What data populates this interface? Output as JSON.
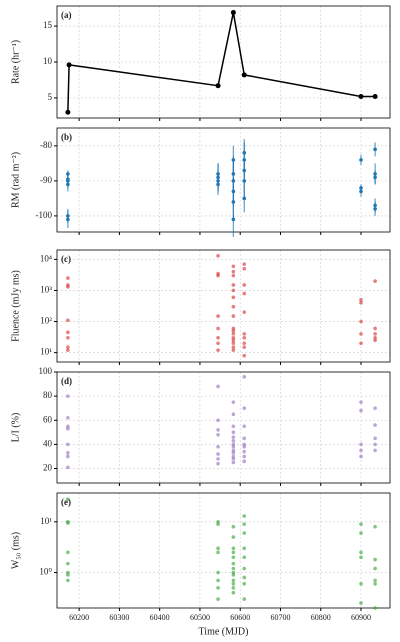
{
  "chart_data": [
    {
      "type": "line",
      "panel_label": "(a)",
      "ylabel": "Rate (hr⁻¹)",
      "color": "#000000",
      "x": [
        60172,
        60175,
        60545,
        60583,
        60610,
        60900,
        60935
      ],
      "values": [
        3,
        9.6,
        6.7,
        16.9,
        8.2,
        5.2,
        5.2
      ],
      "xlim": [
        60145,
        60972
      ],
      "ylim": [
        2.2,
        17.8
      ],
      "yticks": [
        5,
        10,
        15
      ],
      "grid": true
    },
    {
      "type": "errorbar",
      "panel_label": "(b)",
      "ylabel": "RM (rad m⁻²)",
      "color": "#1f77b4",
      "x": [
        60172,
        60172,
        60172,
        60172,
        60172,
        60172,
        60545,
        60545,
        60545,
        60545,
        60583,
        60583,
        60583,
        60583,
        60583,
        60583,
        60610,
        60610,
        60610,
        60610,
        60610,
        60900,
        60900,
        60900,
        60935,
        60935,
        60935,
        60935,
        60935
      ],
      "values": [
        -90,
        -91,
        -89.5,
        -100,
        -101,
        -88,
        -88,
        -89,
        -90,
        -91,
        -84,
        -88,
        -90,
        -93,
        -96,
        -101,
        -84,
        -87,
        -90,
        -95,
        -82,
        -84,
        -92,
        -93,
        -81,
        -88,
        -89,
        -97,
        -98
      ],
      "errors": [
        2,
        2,
        1.5,
        2,
        2.5,
        1,
        3,
        4,
        2,
        3,
        4,
        5,
        6,
        4,
        5,
        5,
        5,
        4,
        5,
        4,
        4,
        1.5,
        1,
        1.5,
        2,
        3,
        2,
        2,
        2
      ],
      "xlim": [
        60145,
        60972
      ],
      "ylim": [
        -104.6,
        -74.9
      ],
      "yticks": [
        -100,
        -90,
        -80
      ],
      "grid": true
    },
    {
      "type": "scatter",
      "panel_label": "(c)",
      "ylabel": "Fluence (mJy ms)",
      "color": "#d62728",
      "log": true,
      "x": [
        60172,
        60172,
        60172,
        60172,
        60172,
        60172,
        60172,
        60172,
        60545,
        60545,
        60545,
        60545,
        60545,
        60545,
        60545,
        60545,
        60583,
        60583,
        60583,
        60583,
        60583,
        60583,
        60583,
        60583,
        60583,
        60583,
        60583,
        60583,
        60583,
        60583,
        60583,
        60583,
        60610,
        60610,
        60610,
        60610,
        60610,
        60610,
        60610,
        60610,
        60610,
        60610,
        60900,
        60900,
        60900,
        60900,
        60900,
        60935,
        60935,
        60935,
        60935,
        60935
      ],
      "values": [
        2500,
        1500,
        1300,
        110,
        45,
        30,
        15,
        12,
        13000,
        3500,
        3000,
        150,
        60,
        30,
        20,
        12,
        6000,
        4000,
        3000,
        1500,
        1000,
        600,
        300,
        150,
        60,
        50,
        40,
        30,
        25,
        20,
        15,
        12,
        7000,
        5000,
        1500,
        800,
        200,
        40,
        30,
        20,
        15,
        8,
        500,
        400,
        100,
        40,
        20,
        2000,
        60,
        40,
        30,
        25
      ],
      "xlim": [
        60145,
        60972
      ],
      "ylim": [
        5,
        20000
      ],
      "yticks": [
        {
          "value": 10,
          "label": "10¹"
        },
        {
          "value": 100,
          "label": "10²"
        },
        {
          "value": 1000,
          "label": "10³"
        },
        {
          "value": 10000,
          "label": "10⁴"
        }
      ],
      "grid": true
    },
    {
      "type": "scatter",
      "panel_label": "(d)",
      "ylabel": "L/I (%)",
      "color": "#9467bd",
      "x": [
        60172,
        60172,
        60172,
        60172,
        60172,
        60172,
        60172,
        60172,
        60545,
        60545,
        60545,
        60545,
        60545,
        60545,
        60545,
        60545,
        60583,
        60583,
        60583,
        60583,
        60583,
        60583,
        60583,
        60583,
        60583,
        60583,
        60583,
        60583,
        60583,
        60610,
        60610,
        60610,
        60610,
        60610,
        60610,
        60610,
        60610,
        60610,
        60900,
        60900,
        60900,
        60900,
        60900,
        60935,
        60935,
        60935,
        60935,
        60935
      ],
      "values": [
        80,
        62,
        55,
        53,
        40,
        33,
        30,
        21,
        88,
        60,
        52,
        48,
        38,
        32,
        28,
        24,
        75,
        65,
        55,
        50,
        46,
        43,
        40,
        38,
        35,
        33,
        30,
        28,
        25,
        96,
        70,
        55,
        45,
        40,
        38,
        34,
        30,
        26,
        75,
        68,
        40,
        35,
        30,
        70,
        56,
        45,
        40,
        35
      ],
      "xlim": [
        60145,
        60972
      ],
      "ylim": [
        8,
        100
      ],
      "yticks": [
        20,
        40,
        60,
        80,
        100
      ],
      "grid": true
    },
    {
      "type": "scatter",
      "panel_label": "(e)",
      "ylabel": "W₅₀ (ms)",
      "color": "#2ca02c",
      "log": true,
      "x": [
        60172,
        60172,
        60172,
        60172,
        60172,
        60172,
        60172,
        60172,
        60545,
        60545,
        60545,
        60545,
        60545,
        60545,
        60545,
        60545,
        60583,
        60583,
        60583,
        60583,
        60583,
        60583,
        60583,
        60583,
        60583,
        60583,
        60583,
        60583,
        60583,
        60610,
        60610,
        60610,
        60610,
        60610,
        60610,
        60610,
        60610,
        60610,
        60900,
        60900,
        60900,
        60900,
        60900,
        60900,
        60935,
        60935,
        60935,
        60935,
        60935,
        60935
      ],
      "values": [
        28,
        10,
        9.5,
        2.5,
        1.5,
        1,
        0.9,
        0.7,
        10,
        9,
        3,
        2.5,
        1,
        0.7,
        0.5,
        0.3,
        8,
        5,
        3,
        2.5,
        2,
        1.5,
        1.2,
        1,
        0.9,
        0.7,
        0.6,
        0.5,
        0.4,
        13,
        9,
        6,
        3,
        2,
        1.2,
        0.8,
        0.6,
        0.3,
        9,
        6,
        2.5,
        2,
        0.6,
        0.25,
        8,
        1.8,
        1.2,
        0.7,
        0.6,
        0.2
      ],
      "xlim": [
        60145,
        60972
      ],
      "ylim": [
        0.2,
        37
      ],
      "yticks": [
        {
          "value": 1,
          "label": "10⁰"
        },
        {
          "value": 10,
          "label": "10¹"
        }
      ],
      "grid": true,
      "xlabel": "Time (MJD)",
      "xticks": [
        60200,
        60300,
        60400,
        60500,
        60600,
        60700,
        60800,
        60900
      ]
    }
  ]
}
